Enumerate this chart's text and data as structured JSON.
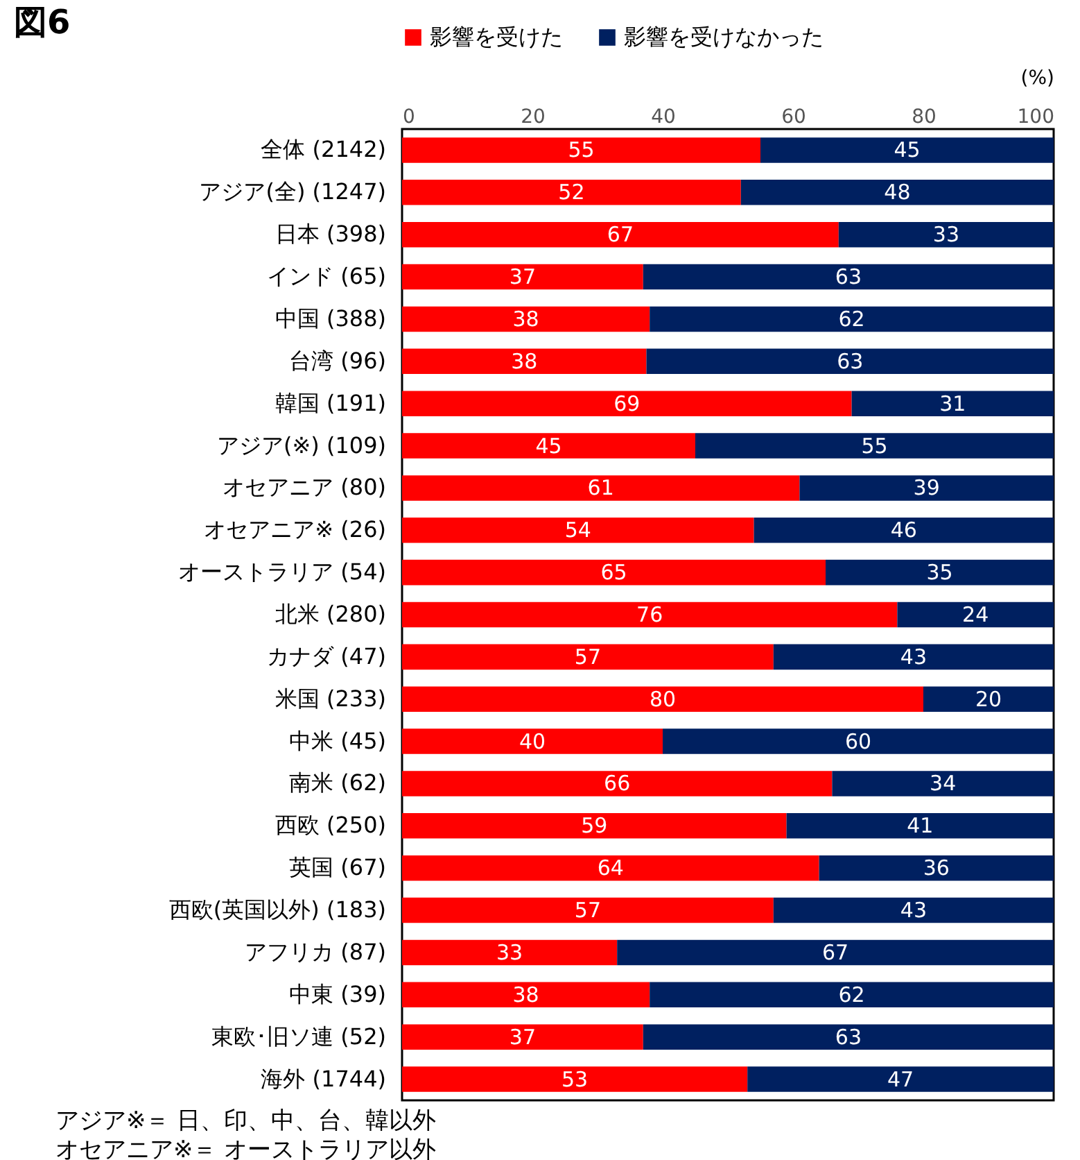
{
  "chart_data": {
    "type": "bar",
    "orientation": "horizontal",
    "stacked": true,
    "title": "図6",
    "xlabel": "(%)",
    "categories": [
      "全体 (2142)",
      "アジア(全) (1247)",
      "日本 (398)",
      "インド (65)",
      "中国 (388)",
      "台湾 (96)",
      "韓国 (191)",
      "アジア(※) (109)",
      "オセアニア (80)",
      "オセアニア※ (26)",
      "オーストラリア (54)",
      "北米 (280)",
      "カナダ (47)",
      "米国 (233)",
      "中米 (45)",
      "南米 (62)",
      "西欧 (250)",
      "英国 (67)",
      "西欧(英国以外) (183)",
      "アフリカ (87)",
      "中東 (39)",
      "東欧･旧ソ連 (52)",
      "海外 (1744)"
    ],
    "series": [
      {
        "name": "影響を受けた",
        "color": "#ff0000",
        "values": [
          55,
          52,
          67,
          37,
          38,
          37.5,
          69,
          45,
          61,
          54,
          65,
          76,
          57,
          80,
          40,
          66,
          59,
          64,
          57,
          33,
          38,
          37,
          53
        ],
        "value_labels": [
          "55",
          "52",
          "67",
          "37",
          "38",
          "38",
          "69",
          "45",
          "61",
          "54",
          "65",
          "76",
          "57",
          "80",
          "40",
          "66",
          "59",
          "64",
          "57",
          "33",
          "38",
          "37",
          "53"
        ]
      },
      {
        "name": "影響を受けなかった",
        "color": "#002060",
        "values": [
          45,
          48,
          33,
          63,
          62,
          62.5,
          31,
          55,
          39,
          46,
          35,
          24,
          43,
          20,
          60,
          34,
          41,
          36,
          43,
          67,
          62,
          63,
          47
        ],
        "value_labels": [
          "45",
          "48",
          "33",
          "63",
          "62",
          "63",
          "31",
          "55",
          "39",
          "46",
          "35",
          "24",
          "43",
          "20",
          "60",
          "34",
          "41",
          "36",
          "43",
          "67",
          "62",
          "63",
          "47"
        ]
      }
    ],
    "xlim": [
      0,
      100
    ],
    "xticks": [
      0,
      20,
      40,
      60,
      80,
      100
    ],
    "grid": false,
    "legend": "top",
    "annotations": [
      "アジア※＝ 日、印、中、台、韓以外",
      "オセアニア※＝ オーストラリア以外"
    ]
  }
}
